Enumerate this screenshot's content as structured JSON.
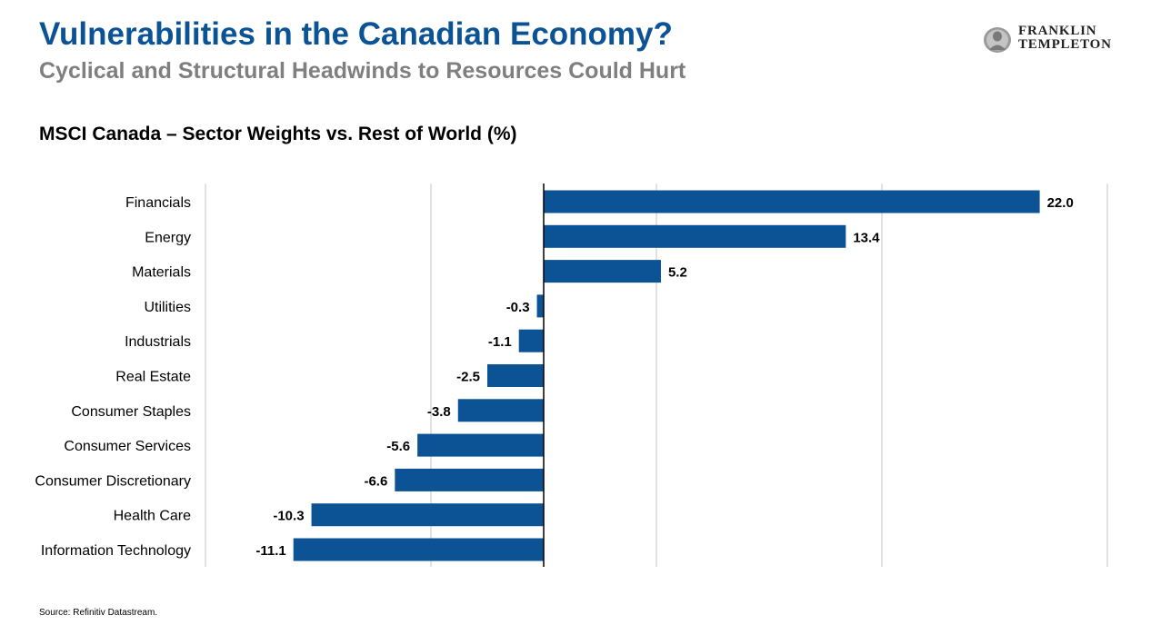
{
  "header": {
    "title": "Vulnerabilities in the Canadian Economy?",
    "subtitle": "Cyclical and Structural Headwinds to Resources Could Hurt"
  },
  "logo": {
    "line1": "FRANKLIN",
    "line2": "TEMPLETON",
    "icon": "franklin-portrait-icon"
  },
  "chart_heading": "MSCI Canada – Sector Weights vs. Rest of World (%)",
  "footer": {
    "source": "Source: Refinitiv Datastream."
  },
  "colors": {
    "bar": "#0b5394",
    "title": "#0b5394",
    "subtitle": "#7f7f7f",
    "grid": "#d9d9d9"
  },
  "chart_data": {
    "type": "bar",
    "orientation": "horizontal",
    "title": "MSCI Canada – Sector Weights vs. Rest of World (%)",
    "categories": [
      "Financials",
      "Energy",
      "Materials",
      "Utilities",
      "Industrials",
      "Real Estate",
      "Consumer Staples",
      "Consumer Services",
      "Consumer Discretionary",
      "Health Care",
      "Information Technology"
    ],
    "values": [
      22.0,
      13.4,
      5.2,
      -0.3,
      -1.1,
      -2.5,
      -3.8,
      -5.6,
      -6.6,
      -10.3,
      -11.1
    ],
    "value_labels": [
      "22.0",
      "13.4",
      "5.2",
      "-0.3",
      "-1.1",
      "-2.5",
      "-3.8",
      "-5.6",
      "-6.6",
      "-10.3",
      "-11.1"
    ],
    "xlim": [
      -15,
      25
    ],
    "gridlines": [
      -15,
      -5,
      5,
      15,
      25
    ],
    "grid": true,
    "axis_ticks_visible": false,
    "legend": "none"
  }
}
